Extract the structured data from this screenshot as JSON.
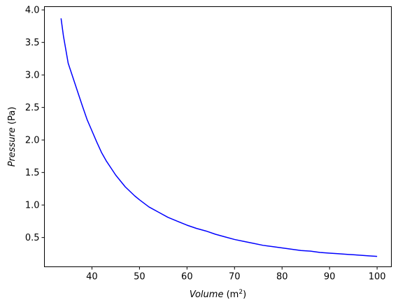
{
  "chart_data": {
    "type": "line",
    "title": "",
    "xlabel": {
      "name": "Volume",
      "unit_base": "m",
      "unit_exp": "2"
    },
    "ylabel": {
      "name": "Pressure",
      "unit": "(Pa)"
    },
    "xlim": [
      30,
      103
    ],
    "ylim": [
      0.05,
      4.05
    ],
    "x_ticks": [
      40,
      50,
      60,
      70,
      80,
      90,
      100
    ],
    "y_ticks": [
      0.5,
      1.0,
      1.5,
      2.0,
      2.5,
      3.0,
      3.5,
      4.0
    ],
    "y_tick_decimals": 1,
    "grid": false,
    "legend": false,
    "series": [
      {
        "color": "#0000ff",
        "x": [
          33.5,
          34.0,
          35.0,
          36.0,
          37.0,
          38.0,
          39.0,
          40.0,
          41.0,
          42.0,
          43.0,
          44.0,
          45.0,
          46.0,
          47.0,
          48.0,
          49.0,
          50.0,
          52.0,
          54.0,
          56.0,
          58.0,
          60.0,
          62.0,
          64.0,
          66.0,
          68.0,
          70.0,
          72.0,
          74.0,
          76.0,
          78.0,
          80.0,
          82.0,
          84.0,
          86.0,
          88.0,
          90.0,
          92.0,
          94.0,
          96.0,
          98.0,
          100.0
        ],
        "y": [
          3.87,
          3.6,
          3.18,
          2.96,
          2.74,
          2.52,
          2.31,
          2.14,
          1.97,
          1.81,
          1.68,
          1.57,
          1.46,
          1.37,
          1.28,
          1.21,
          1.14,
          1.08,
          0.97,
          0.89,
          0.81,
          0.75,
          0.69,
          0.64,
          0.6,
          0.55,
          0.51,
          0.47,
          0.44,
          0.41,
          0.38,
          0.36,
          0.34,
          0.32,
          0.3,
          0.29,
          0.27,
          0.26,
          0.25,
          0.24,
          0.23,
          0.22,
          0.21
        ]
      }
    ]
  }
}
